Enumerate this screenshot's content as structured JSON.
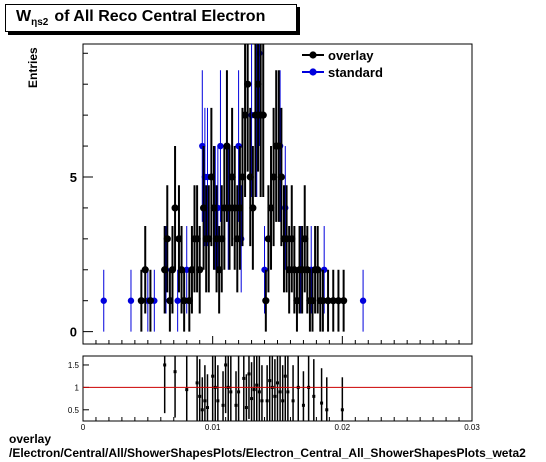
{
  "title": {
    "main": "W",
    "sub": "ηs2",
    "rest": "of All Reco Central Electron"
  },
  "footer": {
    "line1": "overlay",
    "line2": "/Electron/Central/All/ShowerShapesPlots/Electron_Central_All_ShowerShapesPlots_weta2"
  },
  "colors": {
    "overlay": "#000000",
    "standard": "#0000dd",
    "ratio_line": "#cc0000"
  },
  "chart_data": [
    {
      "type": "scatter",
      "name": "main",
      "ylabel": "Entries",
      "xlim": [
        0,
        0.03
      ],
      "ylim": [
        -0.4,
        9.3
      ],
      "y_ticks": [
        0,
        5
      ],
      "y_tick_labels": [
        "0",
        "5"
      ],
      "legend": {
        "position": "top-right",
        "entries": [
          "overlay",
          "standard"
        ]
      },
      "series": [
        {
          "name": "overlay",
          "points": [
            [
              0.0045,
              1
            ],
            [
              0.0048,
              2
            ],
            [
              0.0052,
              1
            ],
            [
              0.0063,
              2
            ],
            [
              0.0065,
              3
            ],
            [
              0.0067,
              1
            ],
            [
              0.0069,
              2
            ],
            [
              0.0071,
              4
            ],
            [
              0.0074,
              3
            ],
            [
              0.0076,
              2
            ],
            [
              0.0078,
              1
            ],
            [
              0.0082,
              1
            ],
            [
              0.0084,
              2
            ],
            [
              0.0086,
              3
            ],
            [
              0.0088,
              3
            ],
            [
              0.009,
              2
            ],
            [
              0.0093,
              4
            ],
            [
              0.0095,
              3
            ],
            [
              0.0097,
              3
            ],
            [
              0.0099,
              5
            ],
            [
              0.0101,
              4
            ],
            [
              0.0103,
              3
            ],
            [
              0.0105,
              2
            ],
            [
              0.0107,
              3
            ],
            [
              0.0109,
              4
            ],
            [
              0.0111,
              6
            ],
            [
              0.0113,
              4
            ],
            [
              0.0115,
              5
            ],
            [
              0.0117,
              4
            ],
            [
              0.0119,
              3
            ],
            [
              0.0121,
              4
            ],
            [
              0.0123,
              5
            ],
            [
              0.0125,
              7
            ],
            [
              0.0127,
              8
            ],
            [
              0.0129,
              5
            ],
            [
              0.0131,
              4
            ],
            [
              0.0133,
              7
            ],
            [
              0.0135,
              8
            ],
            [
              0.0137,
              7
            ],
            [
              0.0139,
              7
            ],
            [
              0.0141,
              1
            ],
            [
              0.0143,
              3
            ],
            [
              0.0145,
              4
            ],
            [
              0.0147,
              5
            ],
            [
              0.0149,
              6
            ],
            [
              0.0151,
              6
            ],
            [
              0.0153,
              5
            ],
            [
              0.0155,
              3
            ],
            [
              0.0157,
              3
            ],
            [
              0.0159,
              2
            ],
            [
              0.0161,
              3
            ],
            [
              0.0163,
              2
            ],
            [
              0.0165,
              1
            ],
            [
              0.0167,
              2
            ],
            [
              0.0169,
              2
            ],
            [
              0.0171,
              3
            ],
            [
              0.0173,
              2
            ],
            [
              0.0175,
              1
            ],
            [
              0.0177,
              1
            ],
            [
              0.0179,
              2
            ],
            [
              0.0181,
              2
            ],
            [
              0.0183,
              1
            ],
            [
              0.0185,
              1
            ],
            [
              0.0189,
              1
            ],
            [
              0.0193,
              1
            ],
            [
              0.0197,
              1
            ],
            [
              0.0201,
              1
            ]
          ]
        },
        {
          "name": "standard",
          "points": [
            [
              0.0016,
              1
            ],
            [
              0.0037,
              1
            ],
            [
              0.005,
              1
            ],
            [
              0.0055,
              1
            ],
            [
              0.0064,
              2
            ],
            [
              0.0073,
              1
            ],
            [
              0.008,
              2
            ],
            [
              0.0092,
              6
            ],
            [
              0.0094,
              5
            ],
            [
              0.0096,
              5
            ],
            [
              0.0102,
              4
            ],
            [
              0.0104,
              4
            ],
            [
              0.0106,
              6
            ],
            [
              0.0112,
              4
            ],
            [
              0.012,
              6
            ],
            [
              0.0122,
              3
            ],
            [
              0.013,
              7
            ],
            [
              0.0134,
              7
            ],
            [
              0.0136,
              9
            ],
            [
              0.014,
              2
            ],
            [
              0.0152,
              6
            ],
            [
              0.0156,
              4
            ],
            [
              0.0168,
              2
            ],
            [
              0.0176,
              2
            ],
            [
              0.0186,
              2
            ],
            [
              0.0216,
              1
            ]
          ]
        }
      ]
    },
    {
      "type": "scatter",
      "name": "ratio",
      "xlim": [
        0,
        0.03
      ],
      "ylim": [
        0.25,
        1.7
      ],
      "x_ticks": [
        0,
        0.01,
        0.02,
        0.03
      ],
      "x_tick_labels": [
        "0",
        "0.01",
        "0.02",
        "0.03"
      ],
      "y_ticks": [
        0.5,
        1,
        1.5
      ],
      "y_tick_labels": [
        "0.5",
        "1",
        "1.5"
      ],
      "reference_line": 1,
      "points": [
        [
          0.0063,
          1.5
        ],
        [
          0.0071,
          1.35
        ],
        [
          0.008,
          0.95
        ],
        [
          0.0088,
          1.1
        ],
        [
          0.009,
          0.8
        ],
        [
          0.0092,
          0.5
        ],
        [
          0.0094,
          0.7
        ],
        [
          0.0096,
          0.55
        ],
        [
          0.01,
          1.25
        ],
        [
          0.0102,
          1.0
        ],
        [
          0.0104,
          0.7
        ],
        [
          0.0108,
          0.6
        ],
        [
          0.011,
          1.5
        ],
        [
          0.0112,
          1.0
        ],
        [
          0.0114,
          0.9
        ],
        [
          0.0118,
          0.6
        ],
        [
          0.012,
          0.9
        ],
        [
          0.0124,
          1.2
        ],
        [
          0.0126,
          0.55
        ],
        [
          0.0128,
          1.3
        ],
        [
          0.013,
          0.75
        ],
        [
          0.0132,
          0.95
        ],
        [
          0.0134,
          1.05
        ],
        [
          0.0136,
          0.9
        ],
        [
          0.0138,
          0.7
        ],
        [
          0.0142,
          0.7
        ],
        [
          0.0144,
          1.15
        ],
        [
          0.0146,
          1.0
        ],
        [
          0.0148,
          0.8
        ],
        [
          0.015,
          1.1
        ],
        [
          0.0152,
          0.9
        ],
        [
          0.0154,
          0.7
        ],
        [
          0.0156,
          1.25
        ],
        [
          0.0158,
          0.9
        ],
        [
          0.0162,
          0.7
        ],
        [
          0.0166,
          1.0
        ],
        [
          0.017,
          0.6
        ],
        [
          0.0174,
          1.0
        ],
        [
          0.0178,
          0.8
        ],
        [
          0.0184,
          0.65
        ],
        [
          0.0188,
          0.5
        ],
        [
          0.02,
          0.5
        ]
      ]
    }
  ]
}
